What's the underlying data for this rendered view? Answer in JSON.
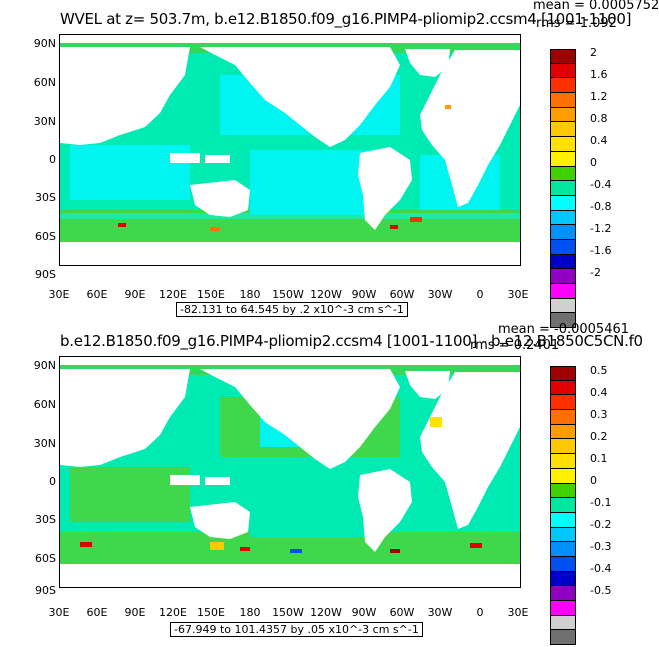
{
  "panel1": {
    "title": "WVEL at z= 503.7m, b.e12.B1850.f09_g16.PIMP4-pliomip2.ccsm4 [1001-1100]",
    "mean": "mean = 0.0005752",
    "rms": "rms = 1.092",
    "range_label": "-82.131 to 64.545 by .2 x10^-3 cm s^-1",
    "colorbar_labels": [
      "2",
      "1.6",
      "1.2",
      "0.8",
      "0.4",
      "0",
      "-0.4",
      "-0.8",
      "-1.2",
      "-1.6",
      "-2"
    ]
  },
  "panel2": {
    "title": "b.e12.B1850.f09_g16.PIMP4-pliomip2.ccsm4 [1001-1100] - b.e12.B1850C5CN.f0",
    "mean": "mean = -0.0005461",
    "rms": "rms = 0.2401",
    "range_label": "-67.949 to 101.4357 by .05 x10^-3 cm s^-1",
    "colorbar_labels": [
      "0.5",
      "0.4",
      "0.3",
      "0.2",
      "0.1",
      "0",
      "-0.1",
      "-0.2",
      "-0.3",
      "-0.4",
      "-0.5"
    ]
  },
  "lat_labels": [
    "90N",
    "60N",
    "30N",
    "0",
    "30S",
    "60S",
    "90S"
  ],
  "lon_labels": [
    "30E",
    "60E",
    "90E",
    "120E",
    "150E",
    "180",
    "150W",
    "120W",
    "90W",
    "60W",
    "30W",
    "0",
    "30E"
  ],
  "colorbar_colors": [
    "#a00000",
    "#e00000",
    "#ff3000",
    "#ff7000",
    "#ff9d00",
    "#ffc800",
    "#ffe000",
    "#fff100",
    "#40d000",
    "#00e6a0",
    "#00ffff",
    "#00c8ff",
    "#0090ff",
    "#0050f0",
    "#0000c8",
    "#9000c0",
    "#ff00ff",
    "#d0d0d0",
    "#707070"
  ],
  "colors": {
    "ocean_main": "#00eab4",
    "ocean_green": "#32d050",
    "ocean_cyan": "#00f5f0",
    "land": "#ffffff"
  }
}
